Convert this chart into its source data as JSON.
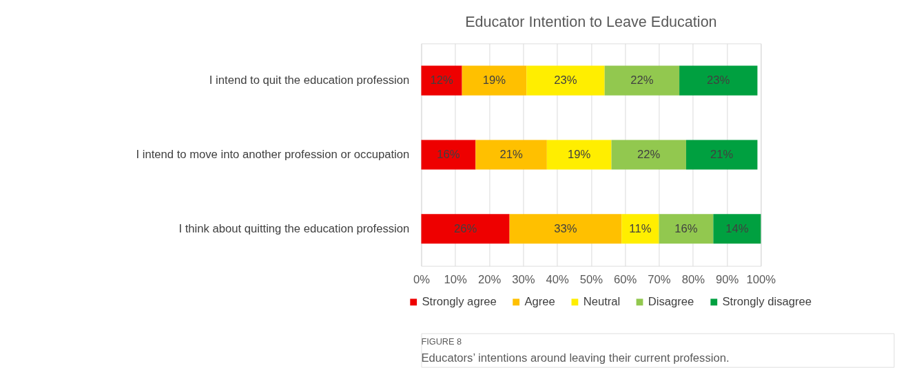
{
  "chart_data": {
    "type": "bar",
    "orientation": "horizontal",
    "stacked": true,
    "title": "Educator Intention to Leave Education",
    "categories": [
      "I intend to quit the education profession",
      "I intend to move into another profession or occupation",
      "I think about quitting the education profession"
    ],
    "series": [
      {
        "name": "Strongly agree",
        "color": "#ee0000",
        "values": [
          12,
          16,
          26
        ],
        "value_labels": [
          "12%",
          "16%",
          "26%"
        ]
      },
      {
        "name": "Agree",
        "color": "#ffc000",
        "values": [
          19,
          21,
          33
        ],
        "value_labels": [
          "19%",
          "21%",
          "33%"
        ]
      },
      {
        "name": "Neutral",
        "color": "#ffee00",
        "values": [
          23,
          19,
          11
        ],
        "value_labels": [
          "23%",
          "19%",
          "11%"
        ]
      },
      {
        "name": "Disagree",
        "color": "#92c84f",
        "values": [
          22,
          22,
          16
        ],
        "value_labels": [
          "22%",
          "22%",
          "16%"
        ]
      },
      {
        "name": "Strongly disagree",
        "color": "#00a040",
        "values": [
          23,
          21,
          14
        ],
        "value_labels": [
          "23%",
          "21%",
          "14%"
        ]
      }
    ],
    "xlim": [
      0,
      100
    ],
    "xticks": [
      {
        "value": 0,
        "label": "0%"
      },
      {
        "value": 10,
        "label": "10%"
      },
      {
        "value": 20,
        "label": "20%"
      },
      {
        "value": 30,
        "label": "30%"
      },
      {
        "value": 40,
        "label": "40%"
      },
      {
        "value": 50,
        "label": "50%"
      },
      {
        "value": 60,
        "label": "60%"
      },
      {
        "value": 70,
        "label": "70%"
      },
      {
        "value": 80,
        "label": "80%"
      },
      {
        "value": 90,
        "label": "90%"
      },
      {
        "value": 100,
        "label": "100%"
      }
    ],
    "grid": "x",
    "legend": "bottom",
    "annotations": [
      "FIGURE 8",
      "Educators’ intentions around leaving their current profession."
    ]
  }
}
